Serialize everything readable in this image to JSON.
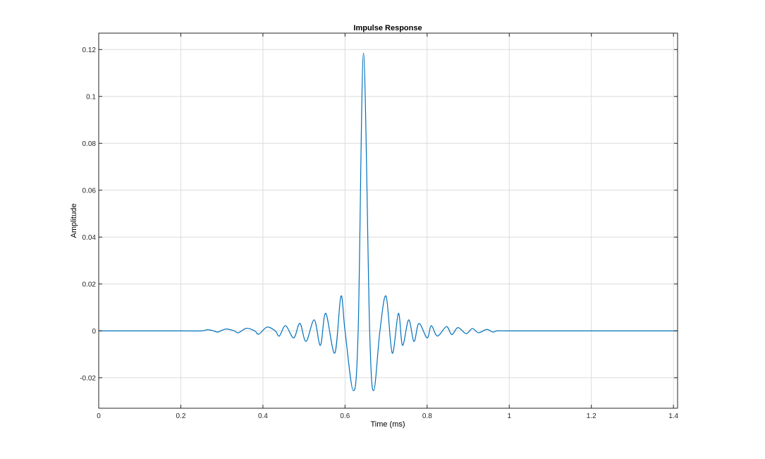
{
  "chart_data": {
    "type": "line",
    "title": "Impulse Response",
    "xlabel": "Time (ms)",
    "ylabel": "Amplitude",
    "xlim": [
      0,
      1.41
    ],
    "ylim": [
      -0.033,
      0.127
    ],
    "grid": true,
    "x_ticks": [
      0,
      0.2,
      0.4,
      0.6,
      0.8,
      1,
      1.2,
      1.4
    ],
    "x_tick_labels": [
      "0",
      "0.2",
      "0.4",
      "0.6",
      "0.8",
      "1",
      "1.2",
      "1.4"
    ],
    "y_ticks": [
      -0.02,
      0,
      0.02,
      0.04,
      0.06,
      0.08,
      0.1,
      0.12
    ],
    "y_tick_labels": [
      "-0.02",
      "0",
      "0.02",
      "0.04",
      "0.06",
      "0.08",
      "0.1",
      "0.12"
    ],
    "series": [
      {
        "color": "#0072bd",
        "x": [
          0,
          0.1,
          0.2,
          0.25,
          0.265,
          0.28,
          0.29,
          0.31,
          0.33,
          0.34,
          0.36,
          0.38,
          0.39,
          0.41,
          0.43,
          0.44,
          0.455,
          0.475,
          0.49,
          0.505,
          0.525,
          0.54,
          0.553,
          0.575,
          0.59,
          0.6,
          0.62,
          0.632,
          0.645,
          0.66,
          0.67,
          0.685,
          0.7,
          0.715,
          0.73,
          0.74,
          0.755,
          0.768,
          0.78,
          0.8,
          0.81,
          0.825,
          0.847,
          0.86,
          0.875,
          0.895,
          0.91,
          0.925,
          0.945,
          0.96,
          0.97,
          0.99,
          1.01,
          1.02,
          1.04,
          1.06,
          1.07,
          1.09,
          1.11,
          1.12,
          1.135,
          1.15,
          1.2,
          1.3,
          1.41
        ],
        "y": [
          0,
          0,
          0,
          0,
          0.0005,
          0,
          -0.0005,
          0.0008,
          0,
          -0.0008,
          0.0011,
          0,
          -0.0014,
          0.0016,
          0,
          -0.0022,
          0.0022,
          -0.003,
          0.0032,
          -0.0045,
          0.0047,
          -0.0062,
          0.0075,
          -0.0095,
          0.0148,
          0,
          -0.0255,
          0,
          0.1185,
          0,
          -0.0255,
          0,
          0.0148,
          -0.0095,
          0.0075,
          -0.0062,
          0.0047,
          -0.0045,
          0.0032,
          -0.003,
          0.0022,
          -0.0022,
          0.0018,
          -0.0016,
          0.0014,
          -0.0012,
          0.001,
          -0.0008,
          0.0006,
          -0.0005,
          0,
          0,
          0,
          0,
          0,
          0,
          0,
          0,
          0,
          0,
          0,
          0,
          0,
          0,
          0
        ]
      }
    ]
  }
}
